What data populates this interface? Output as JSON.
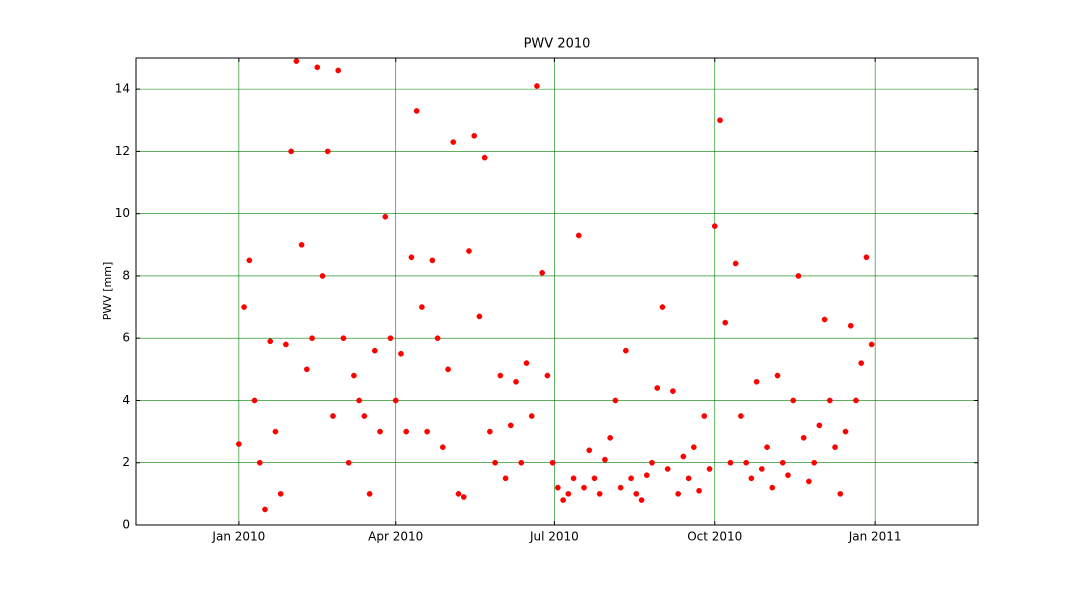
{
  "chart_data": {
    "type": "scatter",
    "title": "PWV 2010",
    "y_label": "PWV [mm]",
    "color": "#ff0000",
    "grid": true,
    "grid_color": "#008000",
    "xlim": [
      733714,
      734197
    ],
    "xticks": [
      {
        "value": 733773,
        "label": "Jan 2010"
      },
      {
        "value": 733863,
        "label": "Apr 2010"
      },
      {
        "value": 733954,
        "label": "Jul 2010"
      },
      {
        "value": 734046,
        "label": "Oct 2010"
      },
      {
        "value": 734138,
        "label": "Jan 2011"
      }
    ],
    "ylim": [
      0,
      15
    ],
    "yticks": [
      0,
      2,
      4,
      6,
      8,
      10,
      12,
      14
    ],
    "x": [
      733773,
      733776,
      733779,
      733782,
      733785,
      733788,
      733791,
      733794,
      733797,
      733800,
      733803,
      733806,
      733809,
      733812,
      733815,
      733818,
      733821,
      733824,
      733827,
      733830,
      733833,
      733836,
      733839,
      733842,
      733845,
      733848,
      733851,
      733854,
      733857,
      733860,
      733863,
      733866,
      733869,
      733872,
      733875,
      733878,
      733881,
      733884,
      733887,
      733890,
      733893,
      733896,
      733899,
      733902,
      733905,
      733908,
      733911,
      733914,
      733917,
      733920,
      733923,
      733926,
      733929,
      733932,
      733935,
      733938,
      733941,
      733944,
      733947,
      733950,
      733953,
      733956,
      733959,
      733962,
      733965,
      733968,
      733971,
      733974,
      733977,
      733980,
      733983,
      733986,
      733989,
      733992,
      733995,
      733998,
      734001,
      734004,
      734007,
      734010,
      734013,
      734016,
      734019,
      734022,
      734025,
      734028,
      734031,
      734034,
      734037,
      734040,
      734043,
      734046,
      734049,
      734052,
      734055,
      734058,
      734061,
      734064,
      734067,
      734070,
      734073,
      734076,
      734079,
      734082,
      734085,
      734088,
      734091,
      734094,
      734097,
      734100,
      734103,
      734106,
      734109,
      734112,
      734115,
      734118,
      734121,
      734124,
      734127,
      734130,
      734133,
      734136
    ],
    "values": [
      2.6,
      7,
      8.5,
      4,
      2,
      0.5,
      5.9,
      3,
      1,
      5.8,
      12,
      14.9,
      9,
      5,
      6,
      14.7,
      8,
      12,
      3.5,
      14.6,
      6,
      2,
      4.8,
      4,
      3.5,
      1,
      5.6,
      3,
      9.9,
      6,
      4,
      5.5,
      3,
      8.6,
      13.3,
      7,
      3,
      8.5,
      6,
      2.5,
      5,
      12.3,
      1,
      0.9,
      8.8,
      12.5,
      6.7,
      11.8,
      3,
      2,
      4.8,
      1.5,
      3.2,
      4.6,
      2,
      5.2,
      3.5,
      14.1,
      8.1,
      4.8,
      2,
      1.2,
      0.8,
      1,
      1.5,
      9.3,
      1.2,
      2.4,
      1.5,
      1,
      2.1,
      2.8,
      4,
      1.2,
      5.6,
      1.5,
      1,
      0.8,
      1.6,
      2,
      4.4,
      7,
      1.8,
      4.3,
      1,
      2.2,
      1.5,
      2.5,
      1.1,
      3.5,
      1.8,
      9.6,
      13,
      6.5,
      2,
      8.4,
      3.5,
      2,
      1.5,
      4.6,
      1.8,
      2.5,
      1.2,
      4.8,
      2,
      1.6,
      4,
      8,
      2.8,
      1.4,
      2,
      3.2,
      6.6,
      4,
      2.5,
      1,
      3,
      6.4,
      4,
      5.2,
      8.6,
      5.8
    ]
  }
}
